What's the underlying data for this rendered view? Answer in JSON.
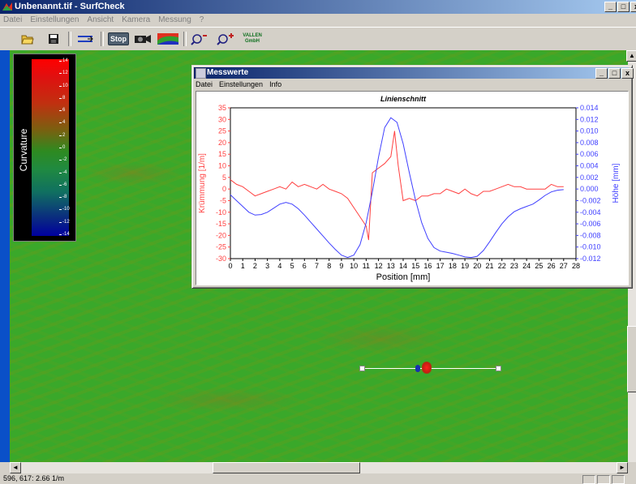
{
  "window": {
    "title": "Unbenannt.tif - SurfCheck",
    "controls": [
      "_",
      "□",
      "x"
    ]
  },
  "menu": [
    "Datei",
    "Einstellungen",
    "Ansicht",
    "Kamera",
    "Messung",
    "?"
  ],
  "toolbar": {
    "stop_label": "Stop",
    "logo_top": "VALLEN",
    "logo_bottom": "GmbH"
  },
  "legend": {
    "title": "Curvature",
    "ticks": [
      "14",
      "12",
      "10",
      "8",
      "6",
      "4",
      "2",
      "0",
      "-2",
      "-4",
      "-6",
      "-8",
      "-10",
      "-12",
      "-14"
    ]
  },
  "dialog": {
    "title": "Messwerte",
    "controls": [
      "_",
      "□",
      "x"
    ],
    "menu": [
      "Datei",
      "Einstellungen",
      "Info"
    ]
  },
  "status": {
    "text": "596, 617: 2.66 1/m"
  },
  "colors": {
    "curvature_series": "#ff4040",
    "height_series": "#4040ff",
    "title_bar": "#0a246a"
  },
  "chart_data": {
    "type": "line",
    "title": "Linienschnitt",
    "xlabel": "Position [mm]",
    "ylabel_left": "Krümmung [1/m]",
    "ylabel_right": "Höhe [mm]",
    "xlim": [
      0,
      28
    ],
    "ylim_left": [
      -30,
      35
    ],
    "ylim_right": [
      -0.012,
      0.014
    ],
    "xticks": [
      "0",
      "1",
      "2",
      "3",
      "4",
      "5",
      "6",
      "7",
      "8",
      "9",
      "10",
      "11",
      "12",
      "13",
      "14",
      "15",
      "16",
      "17",
      "18",
      "19",
      "20",
      "21",
      "22",
      "23",
      "24",
      "25",
      "26",
      "27",
      "28"
    ],
    "yticks_left": [
      "35",
      "30",
      "25",
      "20",
      "15",
      "10",
      "5",
      "0",
      "-5",
      "-10",
      "-15",
      "-20",
      "-25",
      "-30"
    ],
    "yticks_right": [
      "0.014",
      "0.012",
      "0.010",
      "0.008",
      "0.006",
      "0.004",
      "0.002",
      "0.000",
      "-0.002",
      "-0.004",
      "-0.006",
      "-0.008",
      "-0.010",
      "-0.012"
    ],
    "grid": false,
    "series": [
      {
        "axis": "left",
        "x": [
          0,
          0.5,
          1,
          1.5,
          2,
          2.5,
          3,
          3.5,
          4,
          4.5,
          5,
          5.5,
          6,
          6.5,
          7,
          7.5,
          8,
          8.5,
          9,
          9.5,
          10,
          10.5,
          11,
          11.2,
          11.5,
          12,
          12.5,
          13,
          13.3,
          13.6,
          14,
          14.5,
          15,
          15.5,
          16,
          16.5,
          17,
          17.5,
          18,
          18.5,
          19,
          19.5,
          20,
          20.5,
          21,
          21.5,
          22,
          22.5,
          23,
          23.5,
          24,
          24.5,
          25,
          25.5,
          26,
          26.5,
          27
        ],
        "values": [
          4,
          2,
          1,
          -1,
          -3,
          -2,
          -1,
          0,
          1,
          0,
          3,
          1,
          2,
          1,
          0,
          2,
          0,
          -1,
          -2,
          -4,
          -8,
          -12,
          -16,
          -22,
          7,
          9,
          11,
          14,
          25,
          10,
          -5,
          -4,
          -5,
          -3,
          -3,
          -2,
          -2,
          0,
          -1,
          -2,
          0,
          -2,
          -3,
          -1,
          -1,
          0,
          1,
          2,
          1,
          1,
          0,
          0,
          0,
          0,
          2,
          1,
          1
        ]
      },
      {
        "axis": "right",
        "x": [
          0,
          0.5,
          1,
          1.5,
          2,
          2.5,
          3,
          3.5,
          4,
          4.5,
          5,
          5.5,
          6,
          6.5,
          7,
          7.5,
          8,
          8.5,
          9,
          9.5,
          10,
          10.5,
          11,
          11.5,
          12,
          12.5,
          13,
          13.5,
          14,
          14.5,
          15,
          15.5,
          16,
          16.5,
          17,
          17.5,
          18,
          18.5,
          19,
          19.5,
          20,
          20.5,
          21,
          21.5,
          22,
          22.5,
          23,
          23.5,
          24,
          24.5,
          25,
          25.5,
          26,
          26.5,
          27
        ],
        "values": [
          -0.001,
          -0.002,
          -0.003,
          -0.004,
          -0.0045,
          -0.0044,
          -0.004,
          -0.0033,
          -0.0026,
          -0.0023,
          -0.0026,
          -0.0034,
          -0.0045,
          -0.0057,
          -0.0069,
          -0.0081,
          -0.0093,
          -0.0104,
          -0.0114,
          -0.0118,
          -0.0114,
          -0.0096,
          -0.0058,
          -0.0005,
          0.0055,
          0.0106,
          0.0123,
          0.0115,
          0.0078,
          0.0028,
          -0.0019,
          -0.0058,
          -0.0085,
          -0.0101,
          -0.0107,
          -0.0109,
          -0.0111,
          -0.0114,
          -0.0117,
          -0.0118,
          -0.0116,
          -0.0106,
          -0.0091,
          -0.0075,
          -0.006,
          -0.0048,
          -0.0039,
          -0.0034,
          -0.003,
          -0.0026,
          -0.0019,
          -0.0011,
          -0.0005,
          -0.0002,
          -0.0001
        ]
      }
    ]
  }
}
